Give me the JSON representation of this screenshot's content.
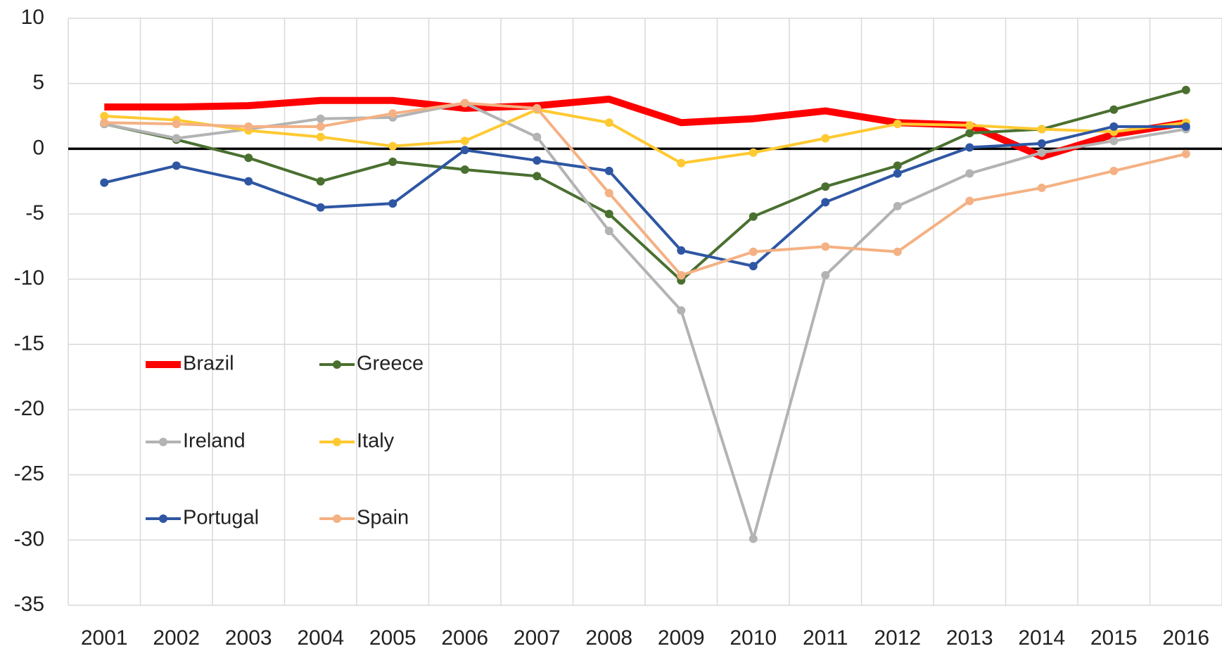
{
  "chart_data": {
    "type": "line",
    "categories": [
      "2001",
      "2002",
      "2003",
      "2004",
      "2005",
      "2006",
      "2007",
      "2008",
      "2009",
      "2010",
      "2011",
      "2012",
      "2013",
      "2014",
      "2015",
      "2016"
    ],
    "series": [
      {
        "name": "Brazil",
        "color": "#ff0000",
        "markers": false,
        "values": [
          3.2,
          3.2,
          3.3,
          3.7,
          3.7,
          3.1,
          3.3,
          3.8,
          2.0,
          2.3,
          2.9,
          2.0,
          1.8,
          -0.6,
          1.1,
          2.0
        ]
      },
      {
        "name": "Greece",
        "color": "#4a7030",
        "markers": true,
        "values": [
          1.9,
          0.7,
          -0.7,
          -2.5,
          -1.0,
          -1.6,
          -2.1,
          -5.0,
          -10.1,
          -5.2,
          -2.9,
          -1.3,
          1.2,
          1.5,
          3.0,
          4.5
        ]
      },
      {
        "name": "Ireland",
        "color": "#b3b3b3",
        "markers": true,
        "values": [
          1.9,
          0.8,
          1.5,
          2.3,
          2.4,
          3.5,
          0.9,
          -6.3,
          -12.4,
          -29.9,
          -9.7,
          -4.4,
          -1.9,
          -0.3,
          0.6,
          1.5
        ]
      },
      {
        "name": "Italy",
        "color": "#ffc931",
        "markers": true,
        "values": [
          2.5,
          2.2,
          1.4,
          0.9,
          0.2,
          0.6,
          3.0,
          2.0,
          -1.1,
          -0.3,
          0.8,
          1.9,
          1.8,
          1.5,
          1.3,
          2.0
        ]
      },
      {
        "name": "Portugal",
        "color": "#2e56a3",
        "markers": true,
        "values": [
          -2.6,
          -1.3,
          -2.5,
          -4.5,
          -4.2,
          -0.1,
          -0.9,
          -1.7,
          -7.8,
          -9.0,
          -4.1,
          -1.9,
          0.1,
          0.4,
          1.7,
          1.7
        ]
      },
      {
        "name": "Spain",
        "color": "#f4b183",
        "markers": true,
        "values": [
          2.0,
          1.9,
          1.7,
          1.7,
          2.7,
          3.5,
          3.1,
          -3.4,
          -9.7,
          -7.9,
          -7.5,
          -7.9,
          -4.0,
          -3.0,
          -1.7,
          -0.4
        ]
      }
    ],
    "ylim": [
      -35,
      10
    ],
    "yticks": [
      -35,
      -30,
      -25,
      -20,
      -15,
      -10,
      -5,
      0,
      5,
      10
    ],
    "grid": true,
    "legend": "lower left"
  }
}
